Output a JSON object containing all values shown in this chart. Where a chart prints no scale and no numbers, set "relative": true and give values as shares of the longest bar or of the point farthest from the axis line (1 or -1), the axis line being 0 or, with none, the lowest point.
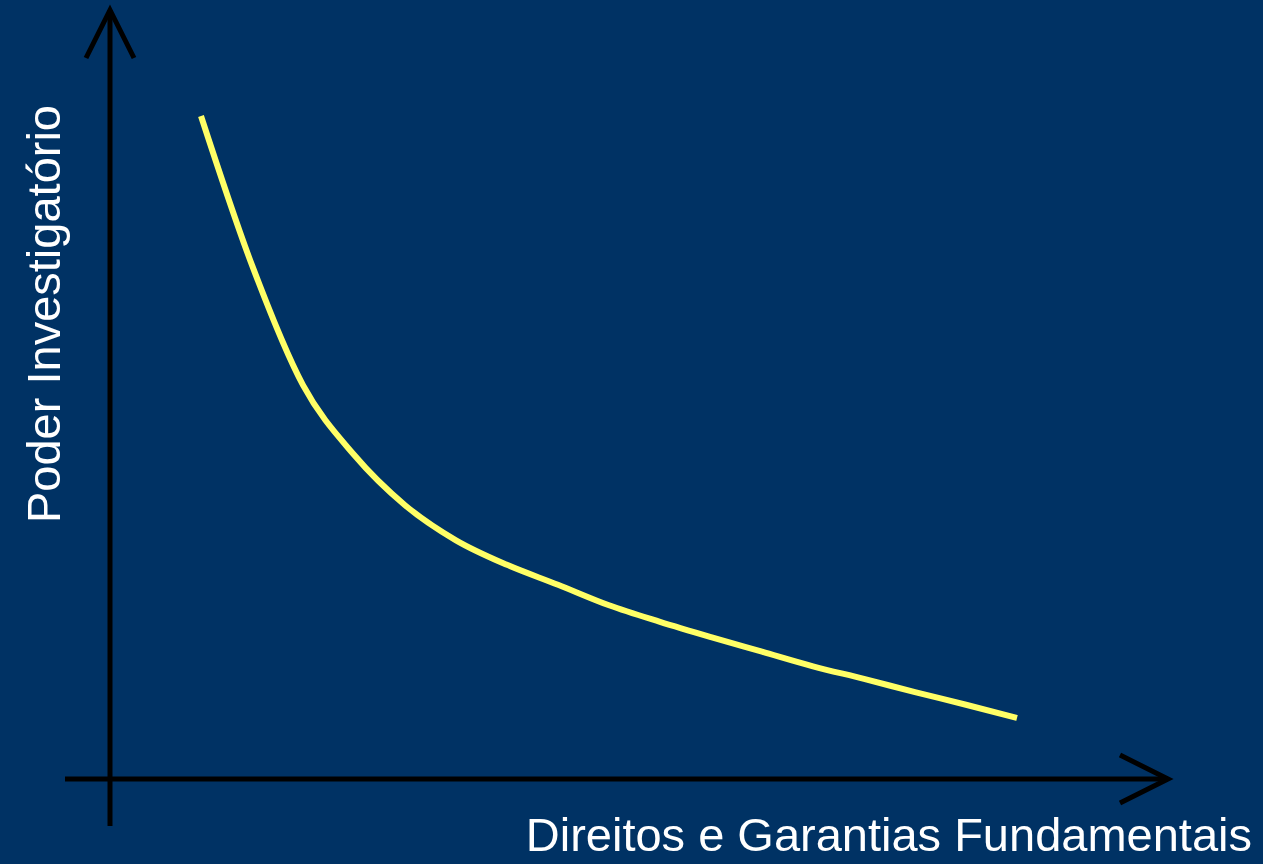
{
  "chart_data": {
    "type": "line",
    "relative": true,
    "xlabel": "Direitos e Garantias Fundamentais",
    "ylabel": "Poder Investigatório",
    "categories": [
      null,
      null,
      null,
      null,
      null,
      null,
      null,
      null,
      null,
      null,
      null,
      null,
      null,
      null,
      null,
      null,
      null
    ],
    "series": [
      {
        "color": "#ffff66",
        "values": [
          1.0,
          0.775,
          0.594,
          0.489,
          0.413,
          0.36,
          0.323,
          0.293,
          0.262,
          0.237,
          0.214,
          0.192,
          0.17,
          0.151,
          0.131,
          0.112,
          0.092
        ]
      }
    ],
    "marker": "none",
    "line_style": "solid"
  }
}
